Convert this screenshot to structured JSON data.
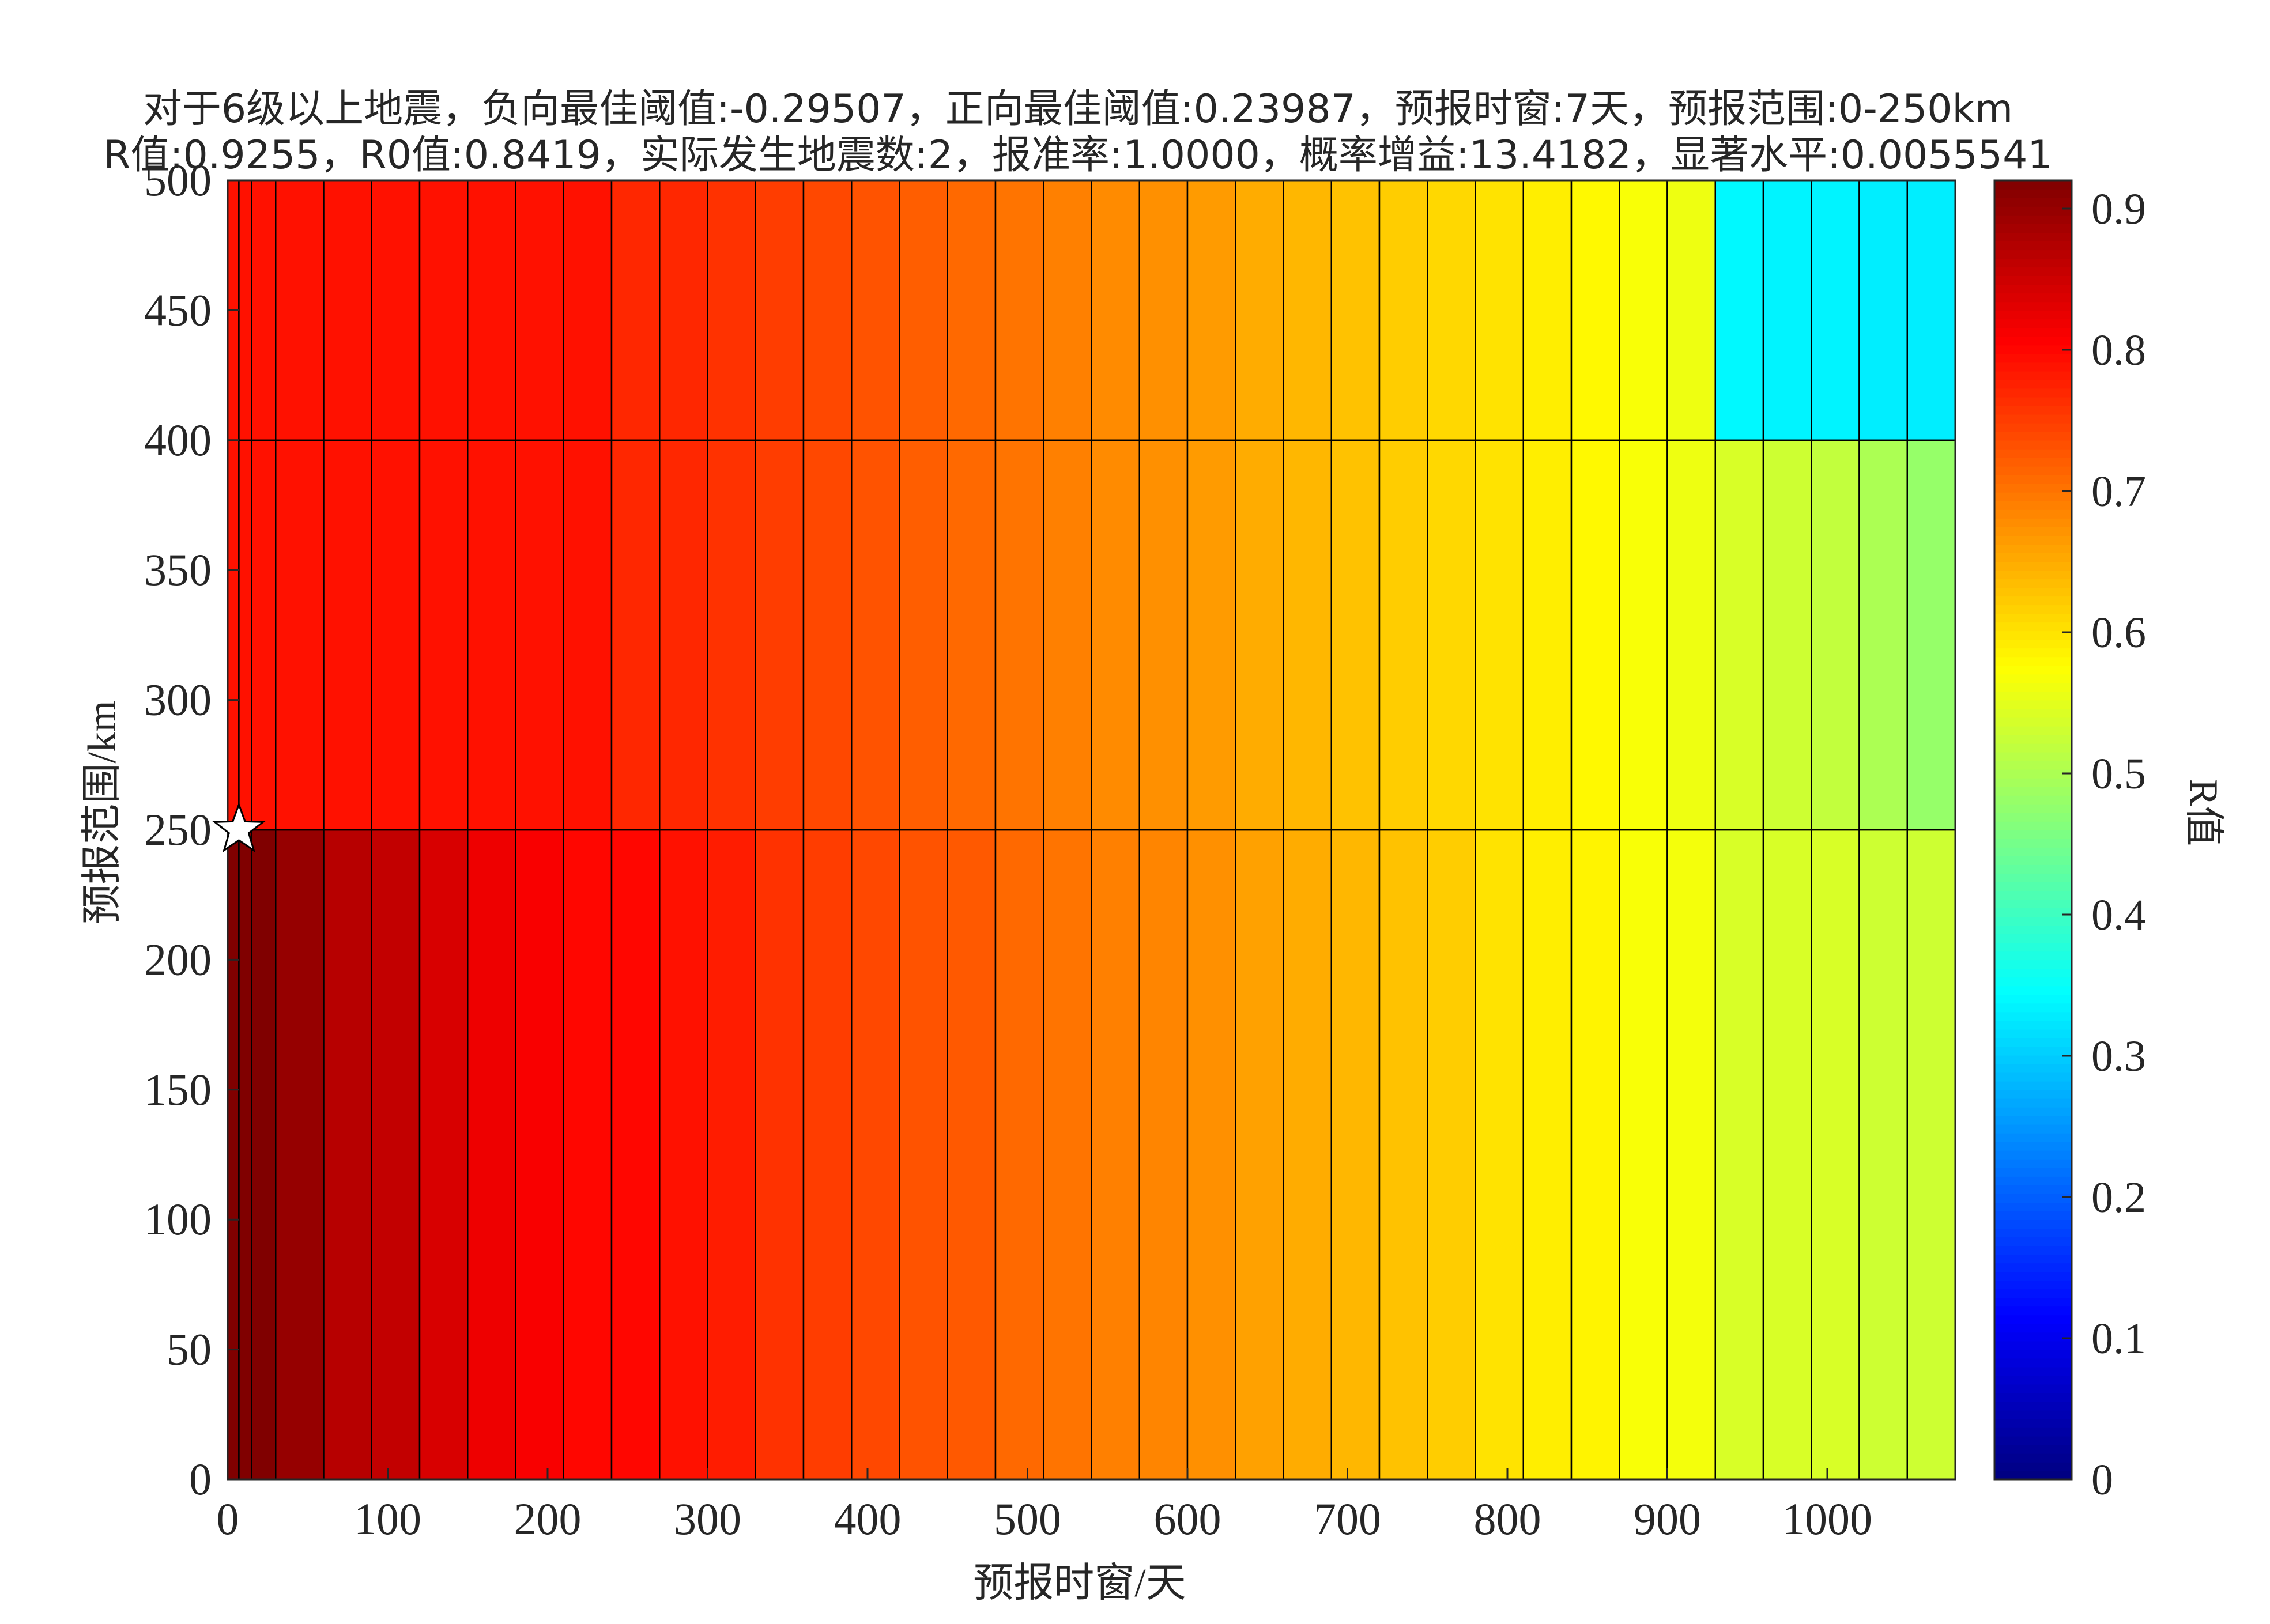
{
  "chart_data": {
    "type": "heatmap",
    "title_lines": [
      "对于6级以上地震，负向最佳阈值:-0.29507，正向最佳阈值:0.23987，预报时窗:7天，预报范围:0-250km",
      "R值:0.9255，R0值:0.8419，实际发生地震数:2，报准率:1.0000，概率增益:13.4182，显著水平:0.0055541"
    ],
    "xlabel": "预报时窗/天",
    "ylabel": "预报范围/km",
    "colorbar_label": "R值",
    "xlim": [
      0,
      1080
    ],
    "ylim": [
      0,
      500
    ],
    "xticks": [
      0,
      100,
      200,
      300,
      400,
      500,
      600,
      700,
      800,
      900,
      1000
    ],
    "yticks": [
      0,
      50,
      100,
      150,
      200,
      250,
      300,
      350,
      400,
      450,
      500
    ],
    "clim": [
      0,
      0.92
    ],
    "cticks": [
      0,
      0.1,
      0.2,
      0.3,
      0.4,
      0.5,
      0.6,
      0.7,
      0.8,
      0.9
    ],
    "colormap": "jet",
    "x_edges": [
      0,
      7,
      15,
      30,
      60,
      90,
      120,
      150,
      180,
      210,
      240,
      270,
      300,
      330,
      360,
      390,
      420,
      450,
      480,
      510,
      540,
      570,
      600,
      630,
      660,
      690,
      720,
      750,
      780,
      810,
      840,
      870,
      900,
      930,
      960,
      990,
      1020,
      1050,
      1080
    ],
    "y_edges": [
      0,
      250,
      400,
      500
    ],
    "values": [
      [
        0.9255,
        0.92,
        0.92,
        0.9,
        0.87,
        0.86,
        0.84,
        0.82,
        0.81,
        0.8,
        0.8,
        0.79,
        0.78,
        0.76,
        0.75,
        0.74,
        0.73,
        0.725,
        0.71,
        0.7,
        0.69,
        0.685,
        0.675,
        0.66,
        0.65,
        0.64,
        0.63,
        0.62,
        0.6,
        0.59,
        0.585,
        0.57,
        0.565,
        0.54,
        0.54,
        0.54,
        0.53,
        0.53
      ],
      [
        0.79,
        0.79,
        0.79,
        0.79,
        0.79,
        0.79,
        0.79,
        0.79,
        0.79,
        0.79,
        0.77,
        0.77,
        0.76,
        0.75,
        0.74,
        0.73,
        0.72,
        0.71,
        0.7,
        0.69,
        0.68,
        0.675,
        0.665,
        0.65,
        0.64,
        0.63,
        0.62,
        0.61,
        0.6,
        0.59,
        0.58,
        0.57,
        0.56,
        0.54,
        0.53,
        0.52,
        0.5,
        0.48
      ],
      [
        0.79,
        0.79,
        0.79,
        0.79,
        0.79,
        0.79,
        0.79,
        0.79,
        0.79,
        0.79,
        0.77,
        0.77,
        0.76,
        0.75,
        0.74,
        0.73,
        0.72,
        0.71,
        0.7,
        0.69,
        0.68,
        0.675,
        0.665,
        0.65,
        0.64,
        0.63,
        0.62,
        0.61,
        0.6,
        0.59,
        0.58,
        0.57,
        0.56,
        0.34,
        0.335,
        0.335,
        0.33,
        0.33
      ]
    ],
    "marker": {
      "x": 7,
      "y": 250,
      "shape": "star",
      "color": "#ffffff"
    }
  }
}
